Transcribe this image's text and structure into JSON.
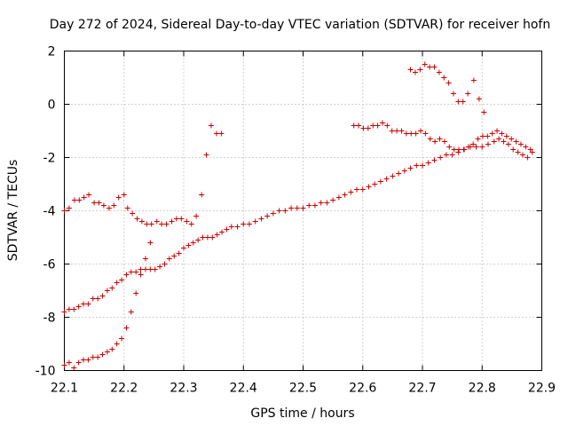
{
  "chart_data": {
    "type": "scatter",
    "title": "Day 272 of 2024, Sidereal Day-to-day VTEC variation (SDTVAR) for receiver hofn",
    "xlabel": "GPS time / hours",
    "ylabel": "SDTVAR / TECUs",
    "xlim": [
      22.1,
      22.9
    ],
    "ylim": [
      -10,
      2
    ],
    "xticks": [
      "22.1",
      "22.2",
      "22.3",
      "22.4",
      "22.5",
      "22.6",
      "22.7",
      "22.8",
      "22.9"
    ],
    "yticks": [
      "-10",
      "-8",
      "-6",
      "-4",
      "-2",
      "0",
      "2"
    ],
    "grid": true,
    "marker": "+",
    "color": "#cc0000",
    "series": [
      {
        "name": "upper-track",
        "points": [
          [
            22.1,
            -4.0
          ],
          [
            22.108,
            -3.9
          ],
          [
            22.117,
            -3.6
          ],
          [
            22.125,
            -3.6
          ],
          [
            22.133,
            -3.5
          ],
          [
            22.141,
            -3.4
          ],
          [
            22.15,
            -3.7
          ],
          [
            22.158,
            -3.7
          ],
          [
            22.166,
            -3.8
          ],
          [
            22.175,
            -3.9
          ],
          [
            22.183,
            -3.8
          ],
          [
            22.191,
            -3.5
          ],
          [
            22.2,
            -3.4
          ],
          [
            22.206,
            -3.9
          ],
          [
            22.214,
            -4.1
          ],
          [
            22.222,
            -4.3
          ],
          [
            22.23,
            -4.4
          ],
          [
            22.238,
            -4.5
          ],
          [
            22.246,
            -4.5
          ],
          [
            22.255,
            -4.4
          ],
          [
            22.263,
            -4.5
          ],
          [
            22.271,
            -4.5
          ],
          [
            22.28,
            -4.4
          ],
          [
            22.288,
            -4.3
          ],
          [
            22.296,
            -4.3
          ],
          [
            22.305,
            -4.4
          ],
          [
            22.313,
            -4.5
          ],
          [
            22.321,
            -4.2
          ],
          [
            22.33,
            -3.4
          ],
          [
            22.338,
            -1.9
          ],
          [
            22.346,
            -0.8
          ],
          [
            22.355,
            -1.1
          ],
          [
            22.363,
            -1.1
          ]
        ]
      },
      {
        "name": "middle-track",
        "points": [
          [
            22.1,
            -7.8
          ],
          [
            22.108,
            -7.7
          ],
          [
            22.116,
            -7.7
          ],
          [
            22.124,
            -7.6
          ],
          [
            22.132,
            -7.5
          ],
          [
            22.14,
            -7.5
          ],
          [
            22.148,
            -7.3
          ],
          [
            22.156,
            -7.3
          ],
          [
            22.164,
            -7.2
          ],
          [
            22.172,
            -7.0
          ],
          [
            22.18,
            -6.9
          ],
          [
            22.188,
            -6.7
          ],
          [
            22.196,
            -6.6
          ],
          [
            22.204,
            -6.4
          ],
          [
            22.212,
            -6.3
          ],
          [
            22.22,
            -6.3
          ],
          [
            22.228,
            -6.2
          ],
          [
            22.236,
            -6.2
          ],
          [
            22.244,
            -6.2
          ],
          [
            22.252,
            -6.2
          ],
          [
            22.26,
            -6.1
          ],
          [
            22.268,
            -6.0
          ],
          [
            22.276,
            -5.8
          ],
          [
            22.284,
            -5.7
          ],
          [
            22.292,
            -5.6
          ],
          [
            22.3,
            -5.4
          ],
          [
            22.308,
            -5.3
          ],
          [
            22.316,
            -5.2
          ],
          [
            22.324,
            -5.1
          ],
          [
            22.332,
            -5.0
          ],
          [
            22.34,
            -5.0
          ],
          [
            22.348,
            -5.0
          ],
          [
            22.356,
            -4.9
          ],
          [
            22.364,
            -4.8
          ],
          [
            22.372,
            -4.7
          ],
          [
            22.38,
            -4.6
          ],
          [
            22.39,
            -4.6
          ],
          [
            22.4,
            -4.5
          ],
          [
            22.41,
            -4.5
          ],
          [
            22.42,
            -4.4
          ],
          [
            22.43,
            -4.3
          ],
          [
            22.44,
            -4.2
          ],
          [
            22.45,
            -4.1
          ],
          [
            22.46,
            -4.0
          ],
          [
            22.47,
            -4.0
          ],
          [
            22.48,
            -3.9
          ],
          [
            22.49,
            -3.9
          ],
          [
            22.5,
            -3.9
          ],
          [
            22.51,
            -3.8
          ],
          [
            22.52,
            -3.8
          ],
          [
            22.53,
            -3.7
          ],
          [
            22.54,
            -3.7
          ],
          [
            22.55,
            -3.6
          ],
          [
            22.56,
            -3.5
          ],
          [
            22.57,
            -3.4
          ],
          [
            22.58,
            -3.3
          ],
          [
            22.59,
            -3.2
          ],
          [
            22.6,
            -3.2
          ],
          [
            22.61,
            -3.1
          ],
          [
            22.62,
            -3.0
          ],
          [
            22.63,
            -2.9
          ],
          [
            22.64,
            -2.8
          ],
          [
            22.65,
            -2.7
          ],
          [
            22.66,
            -2.6
          ],
          [
            22.67,
            -2.5
          ],
          [
            22.68,
            -2.4
          ],
          [
            22.69,
            -2.3
          ],
          [
            22.7,
            -2.3
          ],
          [
            22.71,
            -2.2
          ],
          [
            22.72,
            -2.1
          ],
          [
            22.73,
            -2.0
          ],
          [
            22.74,
            -1.9
          ],
          [
            22.75,
            -1.9
          ],
          [
            22.76,
            -1.8
          ],
          [
            22.77,
            -1.7
          ],
          [
            22.78,
            -1.6
          ],
          [
            22.79,
            -1.6
          ],
          [
            22.8,
            -1.6
          ],
          [
            22.81,
            -1.5
          ],
          [
            22.82,
            -1.4
          ],
          [
            22.828,
            -1.3
          ],
          [
            22.836,
            -1.4
          ],
          [
            22.844,
            -1.5
          ],
          [
            22.852,
            -1.7
          ],
          [
            22.86,
            -1.8
          ],
          [
            22.868,
            -1.9
          ],
          [
            22.876,
            -2.0
          ],
          [
            22.884,
            -1.8
          ]
        ]
      },
      {
        "name": "lower-track",
        "points": [
          [
            22.1,
            -9.8
          ],
          [
            22.108,
            -9.7
          ],
          [
            22.116,
            -9.9
          ],
          [
            22.124,
            -9.7
          ],
          [
            22.132,
            -9.6
          ],
          [
            22.14,
            -9.6
          ],
          [
            22.148,
            -9.5
          ],
          [
            22.156,
            -9.5
          ],
          [
            22.164,
            -9.4
          ],
          [
            22.172,
            -9.3
          ],
          [
            22.18,
            -9.2
          ],
          [
            22.188,
            -9.0
          ],
          [
            22.196,
            -8.8
          ],
          [
            22.204,
            -8.4
          ],
          [
            22.212,
            -7.8
          ],
          [
            22.22,
            -7.1
          ],
          [
            22.228,
            -6.4
          ],
          [
            22.236,
            -5.8
          ],
          [
            22.244,
            -5.2
          ]
        ]
      },
      {
        "name": "right-upper-track",
        "points": [
          [
            22.585,
            -0.8
          ],
          [
            22.593,
            -0.8
          ],
          [
            22.601,
            -0.9
          ],
          [
            22.609,
            -0.9
          ],
          [
            22.617,
            -0.8
          ],
          [
            22.625,
            -0.8
          ],
          [
            22.633,
            -0.7
          ],
          [
            22.641,
            -0.8
          ],
          [
            22.649,
            -1.0
          ],
          [
            22.657,
            -1.0
          ],
          [
            22.665,
            -1.0
          ],
          [
            22.673,
            -1.1
          ],
          [
            22.681,
            -1.1
          ],
          [
            22.689,
            -1.1
          ],
          [
            22.697,
            -1.0
          ],
          [
            22.705,
            -1.1
          ],
          [
            22.713,
            -1.3
          ],
          [
            22.721,
            -1.4
          ],
          [
            22.729,
            -1.3
          ],
          [
            22.737,
            -1.4
          ],
          [
            22.745,
            -1.6
          ],
          [
            22.753,
            -1.7
          ],
          [
            22.761,
            -1.7
          ],
          [
            22.769,
            -1.7
          ],
          [
            22.777,
            -1.6
          ],
          [
            22.785,
            -1.5
          ],
          [
            22.793,
            -1.3
          ],
          [
            22.801,
            -1.2
          ],
          [
            22.809,
            -1.2
          ],
          [
            22.817,
            -1.1
          ],
          [
            22.825,
            -1.0
          ],
          [
            22.833,
            -1.1
          ],
          [
            22.841,
            -1.2
          ],
          [
            22.849,
            -1.3
          ],
          [
            22.857,
            -1.4
          ],
          [
            22.865,
            -1.5
          ],
          [
            22.873,
            -1.6
          ],
          [
            22.881,
            -1.7
          ]
        ]
      },
      {
        "name": "top-cluster",
        "points": [
          [
            22.68,
            1.3
          ],
          [
            22.688,
            1.2
          ],
          [
            22.696,
            1.3
          ],
          [
            22.704,
            1.5
          ],
          [
            22.712,
            1.4
          ],
          [
            22.72,
            1.4
          ],
          [
            22.728,
            1.2
          ],
          [
            22.736,
            1.0
          ],
          [
            22.744,
            0.8
          ],
          [
            22.752,
            0.4
          ],
          [
            22.76,
            0.1
          ],
          [
            22.768,
            0.1
          ],
          [
            22.776,
            0.4
          ],
          [
            22.786,
            0.9
          ],
          [
            22.795,
            0.2
          ],
          [
            22.803,
            -0.3
          ]
        ]
      }
    ]
  }
}
